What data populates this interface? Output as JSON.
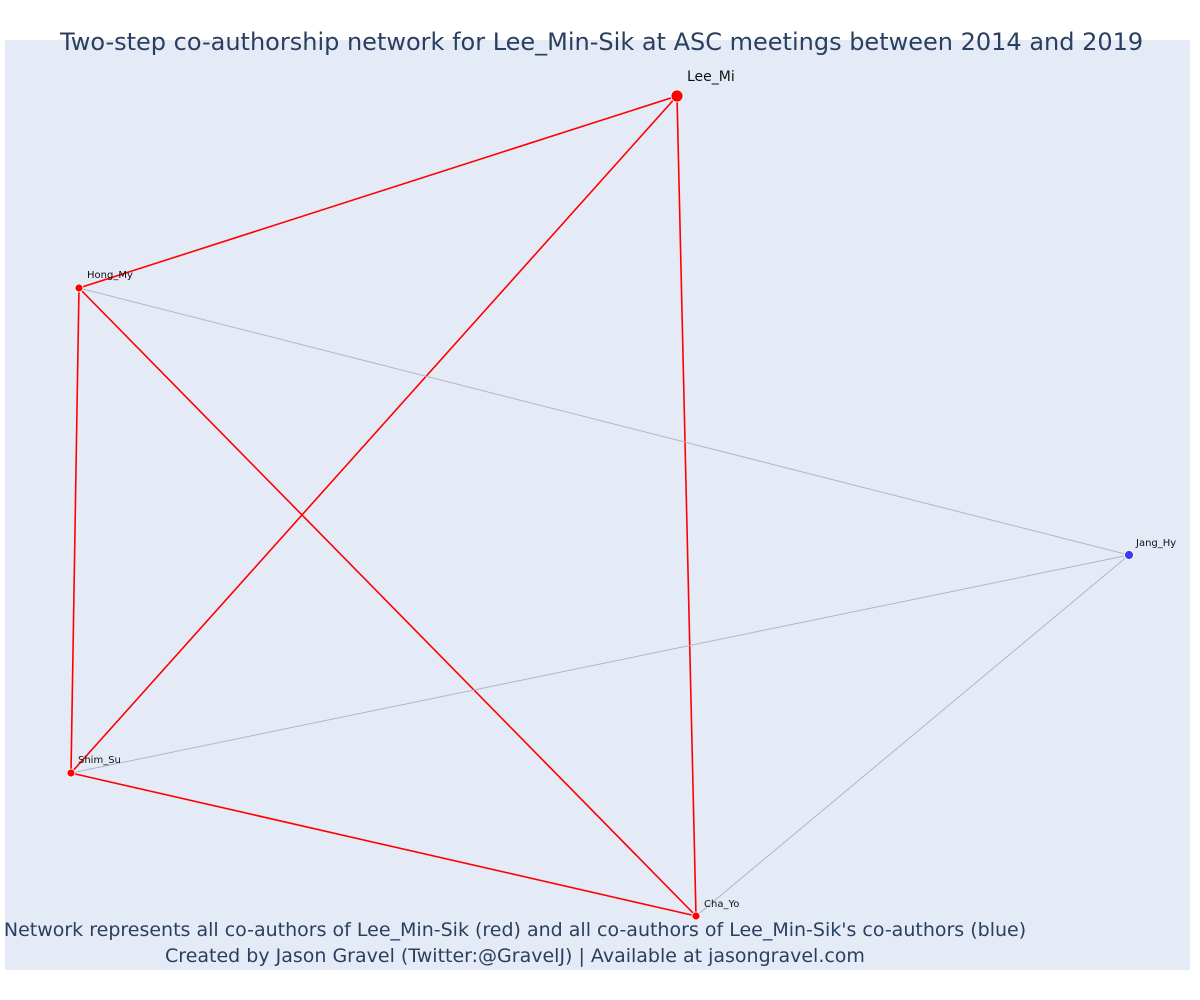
{
  "title": "Two-step co-authorship network for Lee_Min-Sik at ASC meetings between 2014 and 2019",
  "caption": {
    "line1": "Network represents all co-authors of Lee_Min-Sik (red) and all co-authors of Lee_Min-Sik's co-authors (blue)",
    "line2": "Created by Jason Gravel (Twitter:@GravelJ) | Available at jasongravel.com"
  },
  "colors": {
    "background": "#e5ebf6",
    "direct": "#ff0000",
    "secondary": "#3c3cf0",
    "secondary_edge": "#b4b4c8",
    "title_text": "#2a3f5f"
  },
  "network": {
    "nodes": [
      {
        "id": "lee",
        "label": "Lee_Mi",
        "group": "focal"
      },
      {
        "id": "hong",
        "label": "Hong_My",
        "group": "direct"
      },
      {
        "id": "shim",
        "label": "Shim_Su",
        "group": "direct"
      },
      {
        "id": "cha",
        "label": "Cha_Yo",
        "group": "direct"
      },
      {
        "id": "jang",
        "label": "Jang_Hy",
        "group": "secondary"
      }
    ],
    "edges": [
      {
        "source": "lee",
        "target": "hong",
        "type": "direct"
      },
      {
        "source": "lee",
        "target": "shim",
        "type": "direct"
      },
      {
        "source": "lee",
        "target": "cha",
        "type": "direct"
      },
      {
        "source": "hong",
        "target": "shim",
        "type": "direct"
      },
      {
        "source": "hong",
        "target": "cha",
        "type": "direct"
      },
      {
        "source": "shim",
        "target": "cha",
        "type": "direct"
      },
      {
        "source": "hong",
        "target": "jang",
        "type": "secondary"
      },
      {
        "source": "shim",
        "target": "jang",
        "type": "secondary"
      },
      {
        "source": "cha",
        "target": "jang",
        "type": "secondary"
      }
    ]
  }
}
